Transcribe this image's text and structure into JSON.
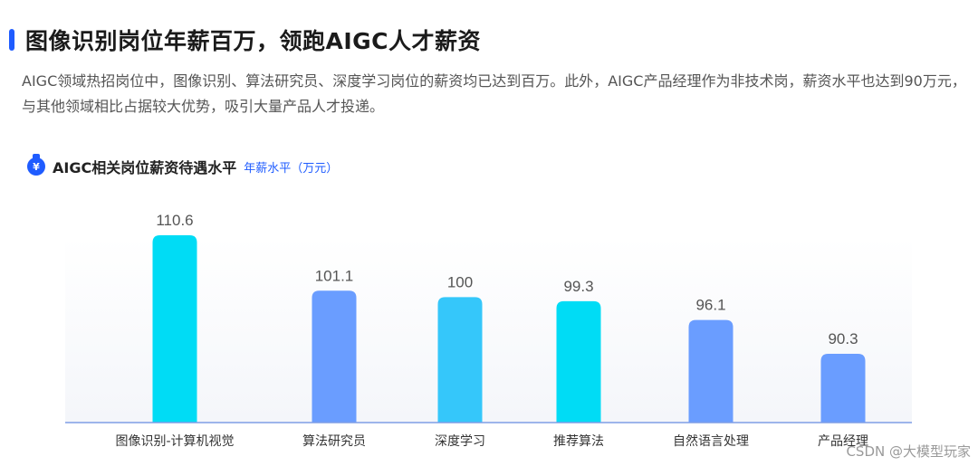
{
  "header": {
    "title": "图像识别岗位年薪百万，领跑AIGC人才薪资",
    "description": "AIGC领域热招岗位中，图像识别、算法研究员、深度学习岗位的薪资均已达到百万。此外，AIGC产品经理作为非技术岗，薪资水平也达到90万元，与其他领域相比占据较大优势，吸引大量产品人才投递。"
  },
  "chart_header": {
    "icon": "money-bag-icon",
    "title": "AIGC相关岗位薪资待遇水平",
    "unit_label": "年薪水平（万元）"
  },
  "chart_data": {
    "type": "bar",
    "title": "AIGC相关岗位薪资待遇水平",
    "ylabel": "年薪水平（万元）",
    "categories": [
      "图像识别-计算机视觉",
      "算法研究员",
      "深度学习",
      "推荐算法",
      "自然语言处理",
      "产品经理"
    ],
    "values": [
      110.6,
      101.1,
      100,
      99.3,
      96.1,
      90.3
    ],
    "value_labels": [
      "110.6",
      "101.1",
      "100",
      "99.3",
      "96.1",
      "90.3"
    ],
    "colors": [
      "#00dcf5",
      "#6a9dff",
      "#35c7fa",
      "#00dcf5",
      "#6a9dff",
      "#6a9dff"
    ],
    "ylim": [
      80,
      112
    ],
    "grid": false,
    "legend": "none"
  },
  "watermark": "CSDN @大模型玩家"
}
